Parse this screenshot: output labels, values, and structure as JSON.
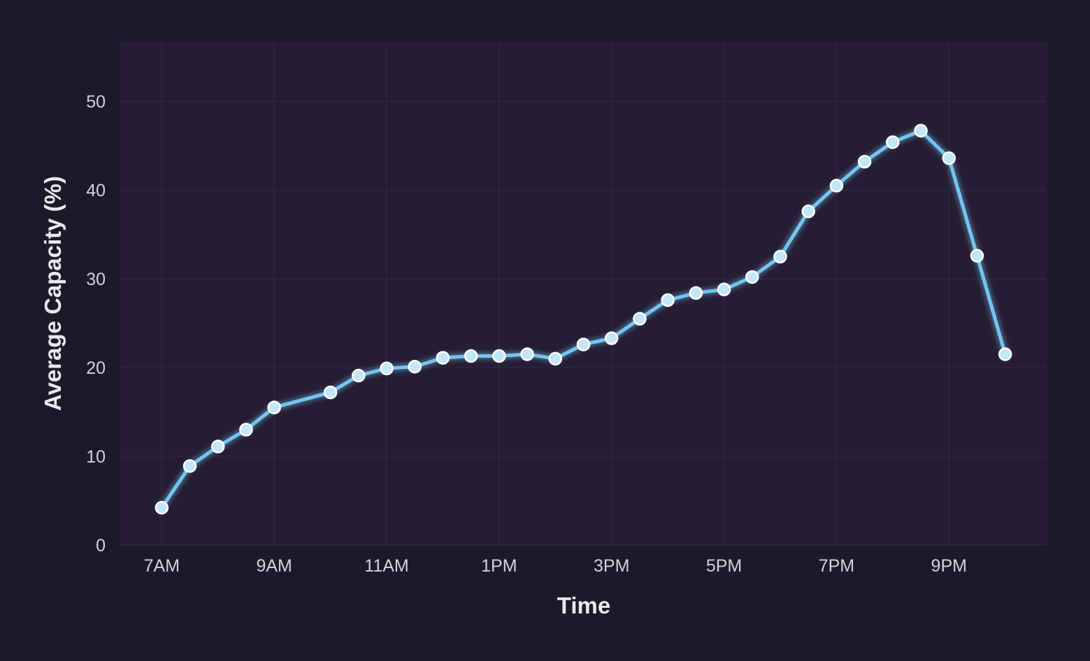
{
  "colors": {
    "background": "#1c1929",
    "plot_background": "#251d33",
    "grid": "#2f2a3f",
    "line": "#74c5f0",
    "marker_fill": "#c2e6fa",
    "marker_edge": "#ffffff"
  },
  "chart_data": {
    "type": "line",
    "xlabel": "Time",
    "ylabel": "Average Capacity (%)",
    "x_unit": "hours of day (24h clock)",
    "ylim": [
      0,
      56.7
    ],
    "xlim": [
      6.25,
      22.75
    ],
    "grid": true,
    "yticks": [
      0,
      10,
      20,
      30,
      40,
      50
    ],
    "xticks": [
      {
        "value": 7,
        "label": "7AM"
      },
      {
        "value": 9,
        "label": "9AM"
      },
      {
        "value": 11,
        "label": "11AM"
      },
      {
        "value": 13,
        "label": "1PM"
      },
      {
        "value": 15,
        "label": "3PM"
      },
      {
        "value": 17,
        "label": "5PM"
      },
      {
        "value": 19,
        "label": "7PM"
      },
      {
        "value": 21,
        "label": "9PM"
      }
    ],
    "series": [
      {
        "x": [
          7,
          7.5,
          8,
          8.5,
          9,
          10,
          10.5,
          11,
          11.5,
          12,
          12.5,
          13,
          13.5,
          14,
          14.5,
          15,
          15.5,
          16,
          16.5,
          17,
          17.5,
          18,
          18.5,
          19,
          19.5,
          20,
          20.5,
          21,
          21.5,
          22
        ],
        "y": [
          4.2,
          8.9,
          11.1,
          13.0,
          15.5,
          17.2,
          19.1,
          19.9,
          20.1,
          21.1,
          21.3,
          21.3,
          21.5,
          21.0,
          22.6,
          23.3,
          25.5,
          27.6,
          28.4,
          28.8,
          30.2,
          32.5,
          37.6,
          40.5,
          43.2,
          45.4,
          46.7,
          43.6,
          32.6,
          21.5
        ]
      }
    ]
  }
}
